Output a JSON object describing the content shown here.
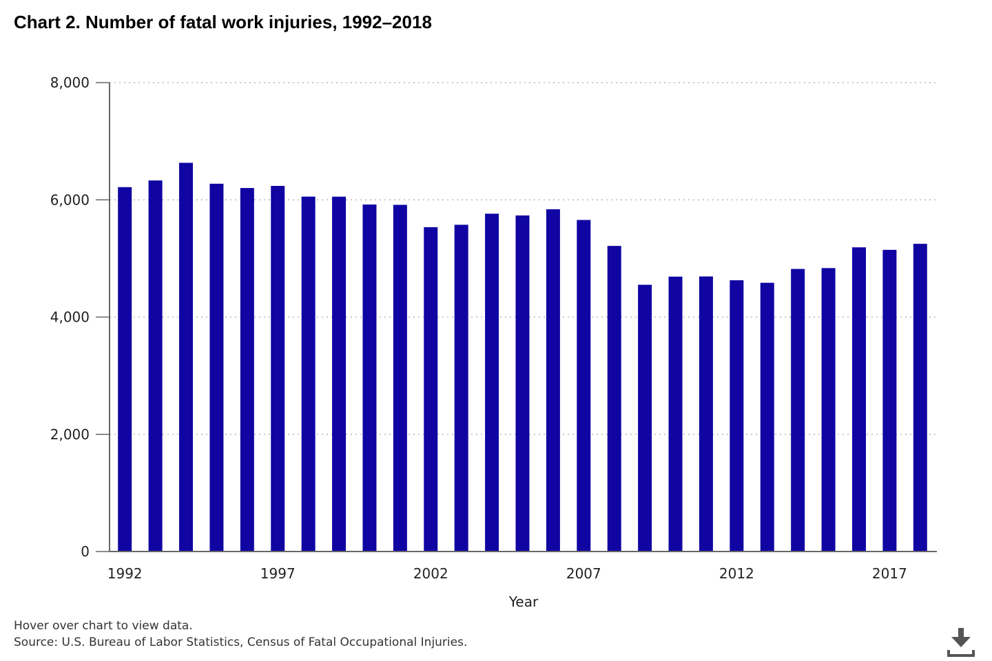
{
  "title": "Chart 2. Number of fatal work injuries, 1992–2018",
  "footnotes": {
    "hint": "Hover over chart to view data.",
    "source": "Source: U.S. Bureau of Labor Statistics, Census of Fatal Occupational Injuries."
  },
  "download": {
    "icon": "download-icon"
  },
  "colors": {
    "bar": "#1005a2",
    "grid": "#b7b7b7",
    "axis": "#666666"
  },
  "chart_data": {
    "type": "bar",
    "categories": [
      "1992",
      "1993",
      "1994",
      "1995",
      "1996",
      "1997",
      "1998",
      "1999",
      "2000",
      "2001",
      "2002",
      "2003",
      "2004",
      "2005",
      "2006",
      "2007",
      "2008",
      "2009",
      "2010",
      "2011",
      "2012",
      "2013",
      "2014",
      "2015",
      "2016",
      "2017",
      "2018"
    ],
    "values": [
      6217,
      6331,
      6632,
      6275,
      6202,
      6238,
      6055,
      6054,
      5920,
      5915,
      5534,
      5575,
      5764,
      5734,
      5840,
      5657,
      5214,
      4551,
      4690,
      4693,
      4628,
      4585,
      4821,
      4836,
      5190,
      5147,
      5250
    ],
    "xlabel": "Year",
    "ylabel": "",
    "xtick_labels": [
      "1992",
      "1997",
      "2002",
      "2007",
      "2012",
      "2017"
    ],
    "ytick_labels": [
      "0",
      "2,000",
      "4,000",
      "6,000",
      "8,000"
    ],
    "yticks": [
      0,
      2000,
      4000,
      6000,
      8000
    ],
    "ylim": [
      0,
      8000
    ],
    "grid": true,
    "legend": false
  }
}
